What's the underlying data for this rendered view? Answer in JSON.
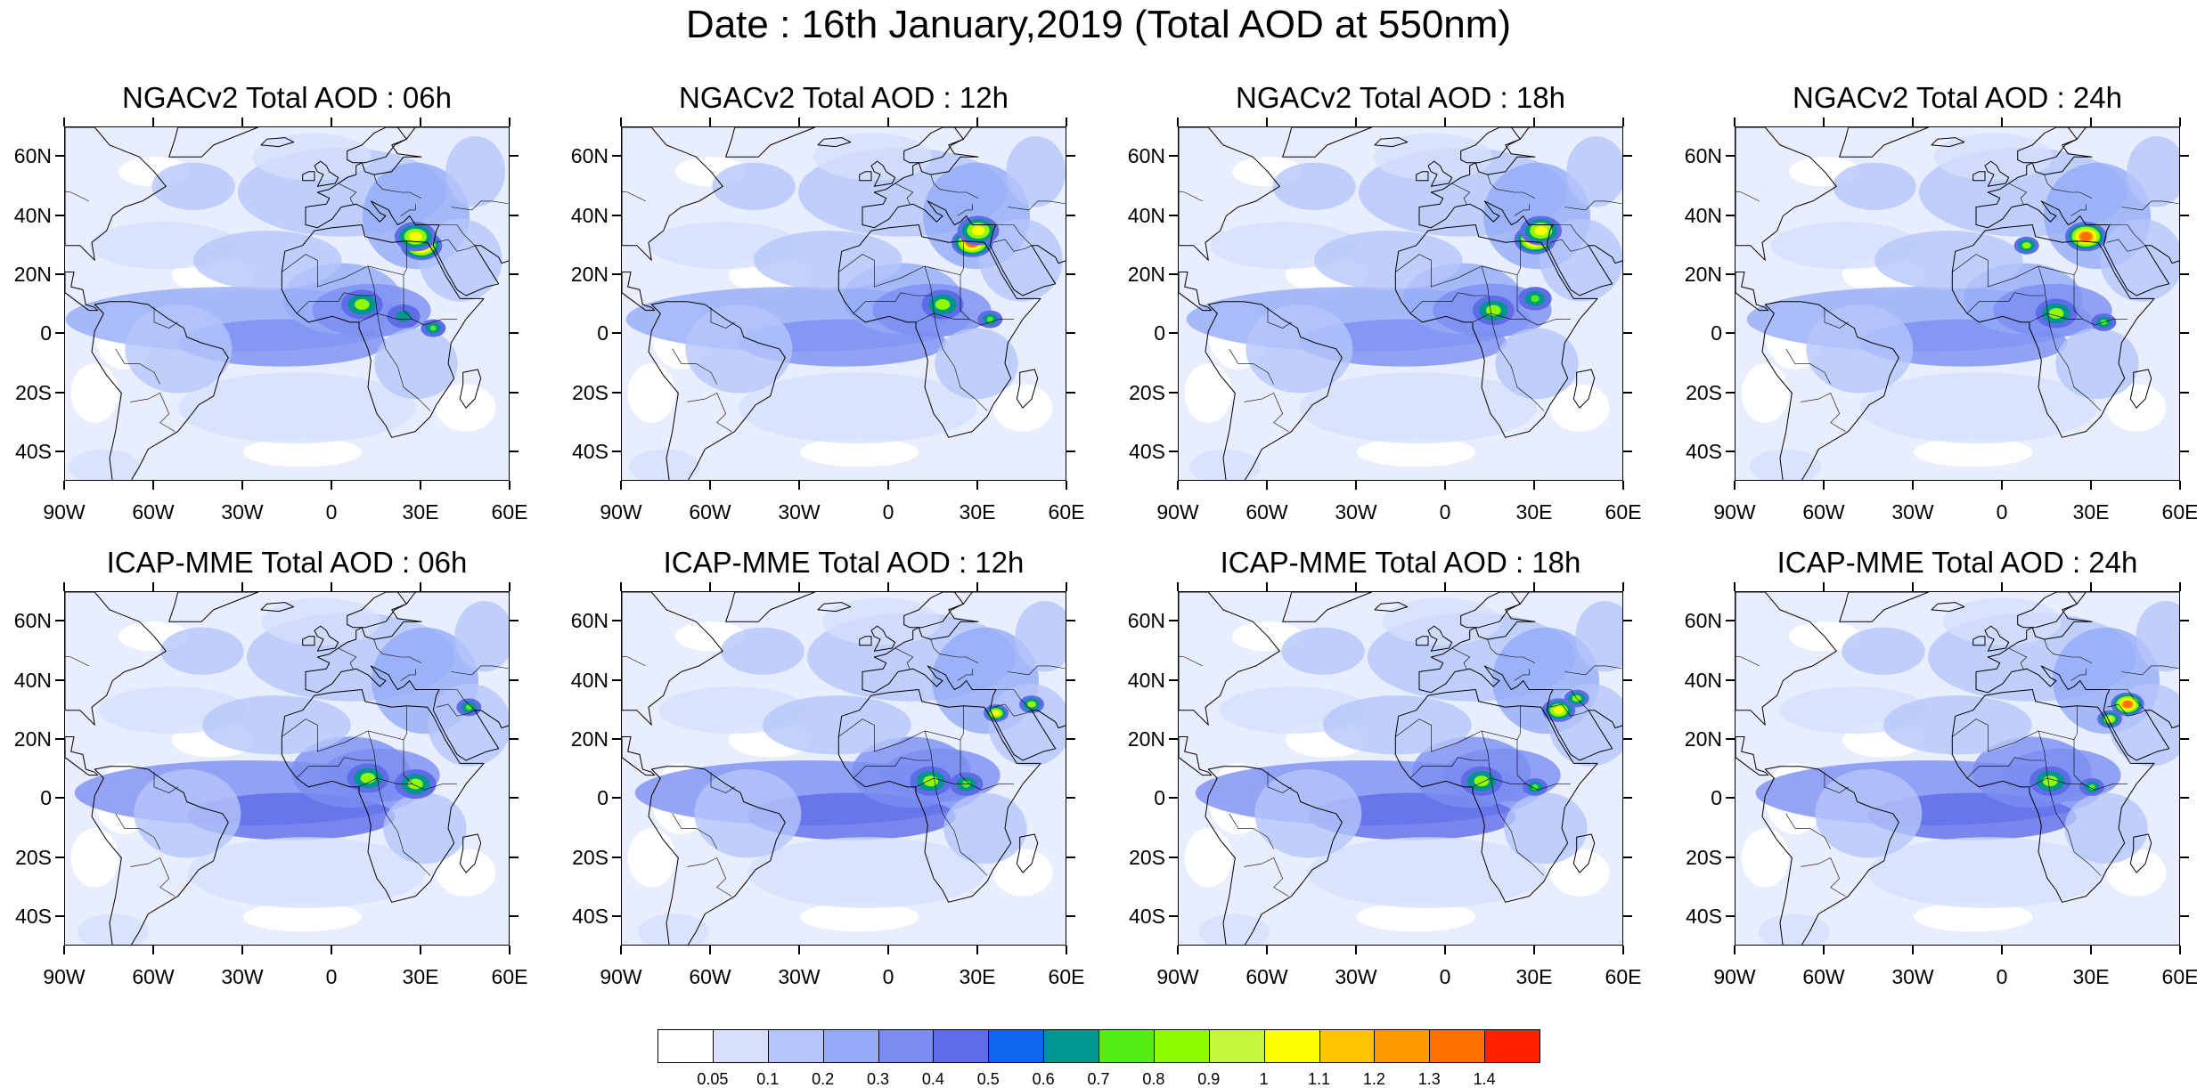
{
  "title": "Date : 16th January,2019 (Total AOD at 550nm)",
  "panels": [
    {
      "title": "NGACv2 Total AOD : 06h",
      "plumes": [
        {
          "lon": 30,
          "lat": 30,
          "r": 5,
          "level": 14
        },
        {
          "lon": 28,
          "lat": 33,
          "r": 5,
          "level": 11
        },
        {
          "lon": 10,
          "lat": 10,
          "r": 5,
          "level": 9
        },
        {
          "lon": 34,
          "lat": 2,
          "r": 3,
          "level": 8
        },
        {
          "lon": 24,
          "lat": 6,
          "r": 4,
          "level": 7
        }
      ]
    },
    {
      "title": "NGACv2 Total AOD : 12h",
      "plumes": [
        {
          "lon": 28,
          "lat": 31,
          "r": 5,
          "level": 14
        },
        {
          "lon": 30,
          "lat": 35,
          "r": 5,
          "level": 11
        },
        {
          "lon": 18,
          "lat": 10,
          "r": 5,
          "level": 9
        },
        {
          "lon": 34,
          "lat": 5,
          "r": 3,
          "level": 8
        }
      ]
    },
    {
      "title": "NGACv2 Total AOD : 18h",
      "plumes": [
        {
          "lon": 30,
          "lat": 32,
          "r": 5,
          "level": 14
        },
        {
          "lon": 32,
          "lat": 35,
          "r": 5,
          "level": 11
        },
        {
          "lon": 16,
          "lat": 8,
          "r": 5,
          "level": 9
        },
        {
          "lon": 30,
          "lat": 12,
          "r": 4,
          "level": 8
        }
      ]
    },
    {
      "title": "NGACv2 Total AOD : 24h",
      "plumes": [
        {
          "lon": 28,
          "lat": 33,
          "r": 5,
          "level": 14
        },
        {
          "lon": 8,
          "lat": 30,
          "r": 3,
          "level": 9
        },
        {
          "lon": 18,
          "lat": 7,
          "r": 5,
          "level": 9
        },
        {
          "lon": 34,
          "lat": 4,
          "r": 3,
          "level": 8
        }
      ]
    },
    {
      "title": "ICAP-MME Total AOD : 06h",
      "plumes": [
        {
          "lon": 12,
          "lat": 7,
          "r": 5,
          "level": 9
        },
        {
          "lon": 28,
          "lat": 5,
          "r": 5,
          "level": 9
        },
        {
          "lon": 46,
          "lat": 31,
          "r": 3,
          "level": 8
        }
      ]
    },
    {
      "title": "ICAP-MME Total AOD : 12h",
      "plumes": [
        {
          "lon": 14,
          "lat": 6,
          "r": 5,
          "level": 9
        },
        {
          "lon": 26,
          "lat": 5,
          "r": 4,
          "level": 8
        },
        {
          "lon": 36,
          "lat": 29,
          "r": 3,
          "level": 11
        },
        {
          "lon": 48,
          "lat": 32,
          "r": 3,
          "level": 9
        }
      ]
    },
    {
      "title": "ICAP-MME Total AOD : 18h",
      "plumes": [
        {
          "lon": 38,
          "lat": 30,
          "r": 4,
          "level": 11
        },
        {
          "lon": 44,
          "lat": 34,
          "r": 3,
          "level": 9
        },
        {
          "lon": 12,
          "lat": 6,
          "r": 5,
          "level": 9
        },
        {
          "lon": 30,
          "lat": 4,
          "r": 3,
          "level": 8
        }
      ]
    },
    {
      "title": "ICAP-MME Total AOD : 24h",
      "plumes": [
        {
          "lon": 42,
          "lat": 32,
          "r": 4,
          "level": 14
        },
        {
          "lon": 36,
          "lat": 27,
          "r": 3,
          "level": 10
        },
        {
          "lon": 16,
          "lat": 6,
          "r": 5,
          "level": 9
        },
        {
          "lon": 30,
          "lat": 4,
          "r": 3,
          "level": 8
        }
      ]
    }
  ],
  "lat_ticks": [
    "60N",
    "40N",
    "20N",
    "0",
    "20S",
    "40S"
  ],
  "lat_values": [
    60,
    40,
    20,
    0,
    -20,
    -40
  ],
  "lon_ticks": [
    "90W",
    "60W",
    "30W",
    "0",
    "30E",
    "60E"
  ],
  "lon_values": [
    -90,
    -60,
    -30,
    0,
    30,
    60
  ],
  "map_extent": {
    "lon": [
      -90,
      60
    ],
    "lat": [
      -50,
      70
    ]
  },
  "colorbar": {
    "labels": [
      "0.05",
      "0.1",
      "0.2",
      "0.3",
      "0.4",
      "0.5",
      "0.6",
      "0.7",
      "0.8",
      "0.9",
      "1",
      "1.1",
      "1.2",
      "1.3",
      "1.4"
    ],
    "colors": [
      "#ffffff",
      "#d6e0fc",
      "#b4c5fa",
      "#94abf8",
      "#7a8ef1",
      "#5e6ce8",
      "#0d68ef",
      "#00958f",
      "#54ee15",
      "#8efb00",
      "#c5f63a",
      "#ffff00",
      "#ffc500",
      "#ff9b00",
      "#ff7000",
      "#ff2000"
    ]
  }
}
